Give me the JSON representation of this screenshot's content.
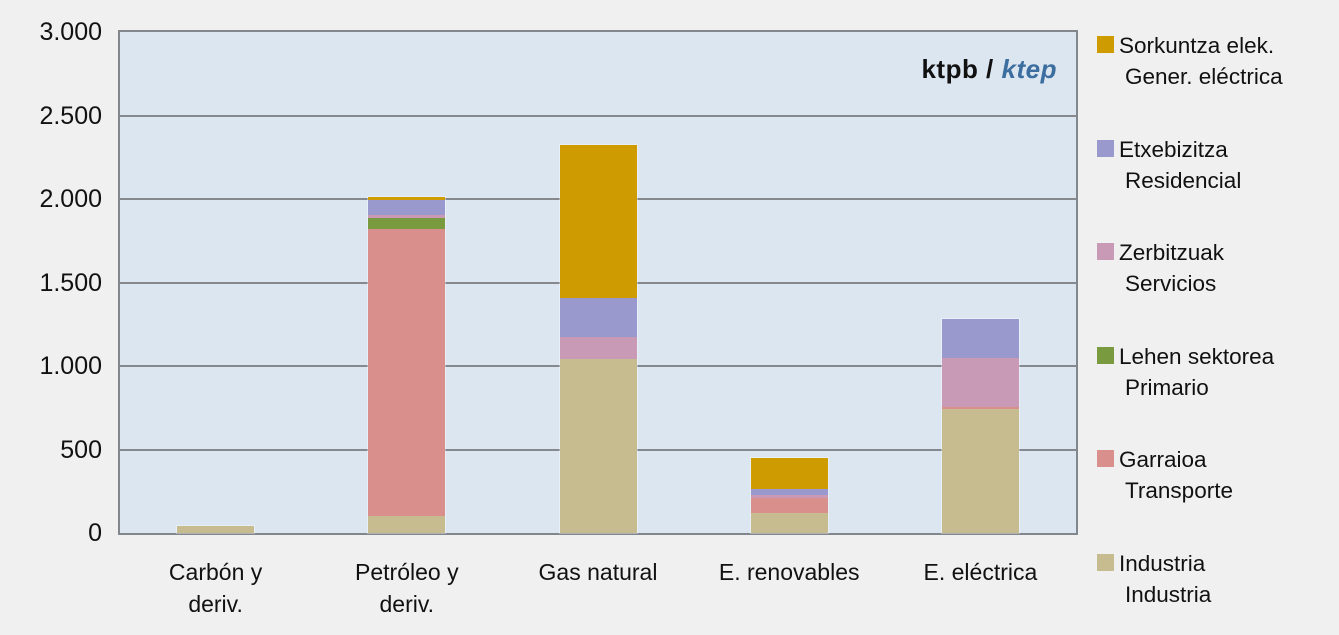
{
  "page": {
    "background": "#F0F0F0"
  },
  "chart_data": {
    "type": "bar",
    "stacked": true,
    "unit_label": {
      "left": "ktpb /",
      "right": "ktep",
      "right_color": "#3C6E9F"
    },
    "categories": [
      "Carbón y deriv.",
      "Petróleo y deriv.",
      "Gas natural",
      "E. renovables",
      "E. eléctrica"
    ],
    "category_lines": [
      [
        "Carbón y",
        "deriv."
      ],
      [
        "Petróleo y",
        "deriv."
      ],
      [
        "Gas natural"
      ],
      [
        "E. renovables"
      ],
      [
        "E. eléctrica"
      ]
    ],
    "ylim": [
      0,
      3000
    ],
    "ytick_step": 500,
    "ytick_values": [
      0,
      500,
      1000,
      1500,
      2000,
      2500,
      3000
    ],
    "ytick_labels": [
      "0",
      "500",
      "1.000",
      "1.500",
      "2.000",
      "2.500",
      "3.000"
    ],
    "grid": true,
    "grid_color": "#85898E",
    "plot_bg": "#DCE6F1",
    "legend_position": "right",
    "series": [
      {
        "label_eu": "Industria",
        "label_es": "Industria",
        "color": "#C6BC90",
        "values": [
          42,
          101,
          1044,
          119,
          745
        ]
      },
      {
        "label_eu": "Garraioa",
        "label_es": "Transporte",
        "color": "#D9908D",
        "values": [
          0,
          1721,
          0,
          92,
          12
        ]
      },
      {
        "label_eu": "Lehen sektorea",
        "label_es": "Primario",
        "color": "#7A9A40",
        "values": [
          0,
          66,
          0,
          0,
          0
        ]
      },
      {
        "label_eu": "Zerbitzuak",
        "label_es": "Servicios",
        "color": "#C99AB5",
        "values": [
          0,
          15,
          131,
          15,
          293
        ]
      },
      {
        "label_eu": "Etxebizitza",
        "label_es": "Residencial",
        "color": "#9999CE",
        "values": [
          0,
          92,
          233,
          36,
          232
        ]
      },
      {
        "label_eu": "Sorkuntza elek.",
        "label_es": "Gener. eléctrica",
        "color": "#CE9C00",
        "values": [
          0,
          18,
          918,
          185,
          0
        ]
      }
    ]
  }
}
